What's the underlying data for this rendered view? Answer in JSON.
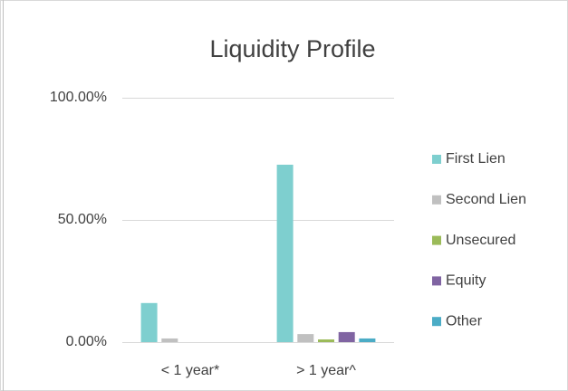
{
  "chart_data": {
    "type": "bar",
    "title": "Liquidity Profile",
    "categories": [
      "< 1 year*",
      "> 1 year^"
    ],
    "series": [
      {
        "name": "First Lien",
        "color": "#7ecfcf",
        "values": [
          16,
          72.6
        ]
      },
      {
        "name": "Second Lien",
        "color": "#c0c0c0",
        "values": [
          1.5,
          3.3
        ]
      },
      {
        "name": "Unsecured",
        "color": "#9bbb59",
        "values": [
          0,
          1.1
        ]
      },
      {
        "name": "Equity",
        "color": "#8064a2",
        "values": [
          0,
          4.1
        ]
      },
      {
        "name": "Other",
        "color": "#4bacc6",
        "values": [
          0,
          1.5
        ]
      }
    ],
    "ylim": [
      0,
      100
    ],
    "yticks": [
      {
        "value": 0,
        "label": "0.00%"
      },
      {
        "value": 50,
        "label": "50.00%"
      },
      {
        "value": 100,
        "label": "100.00%"
      }
    ],
    "grid": true,
    "legend": "right"
  }
}
